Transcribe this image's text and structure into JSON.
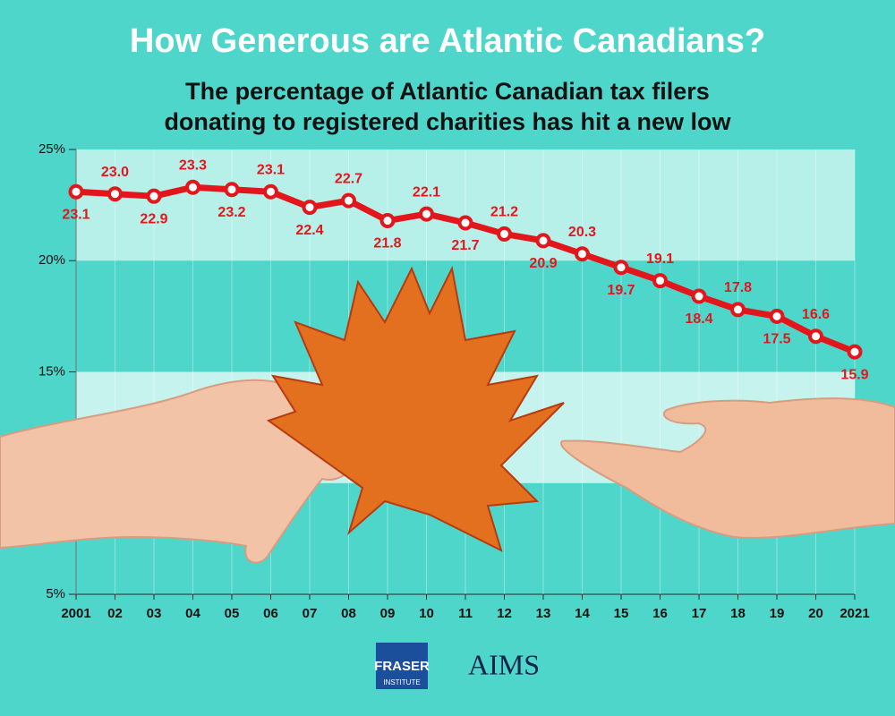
{
  "chart_data": {
    "type": "line",
    "title": "How Generous are Atlantic Canadians?",
    "subtitle": [
      "The percentage of Atlantic Canadian tax filers",
      "donating to registered charities has hit a new low"
    ],
    "categories": [
      "2001",
      "02",
      "03",
      "04",
      "05",
      "06",
      "07",
      "08",
      "09",
      "10",
      "11",
      "12",
      "13",
      "14",
      "15",
      "16",
      "17",
      "18",
      "19",
      "20",
      "2021"
    ],
    "values": [
      23.1,
      23.0,
      22.9,
      23.3,
      23.2,
      23.1,
      22.4,
      22.7,
      21.8,
      22.1,
      21.7,
      21.2,
      20.9,
      20.3,
      19.7,
      19.1,
      18.4,
      17.8,
      17.5,
      16.6,
      15.9
    ],
    "value_labels": [
      "23.1",
      "23.0",
      "22.9",
      "23.3",
      "23.2",
      "23.1",
      "22.4",
      "22.7",
      "21.8",
      "22.1",
      "21.7",
      "21.2",
      "20.9",
      "20.3",
      "19.7",
      "19.1",
      "18.4",
      "17.8",
      "17.5",
      "16.6",
      "15.9"
    ],
    "color": "#e3171b",
    "ylim": [
      5,
      25
    ],
    "yticks": [
      {
        "value": 5,
        "label": "5%"
      },
      {
        "value": 15,
        "label": "15%"
      },
      {
        "value": 20,
        "label": "20%"
      },
      {
        "value": 25,
        "label": "25%"
      }
    ],
    "grid": true
  },
  "logos": {
    "fraser": [
      "FRASER",
      "INSTITUTE"
    ],
    "aims": "AIMS"
  }
}
